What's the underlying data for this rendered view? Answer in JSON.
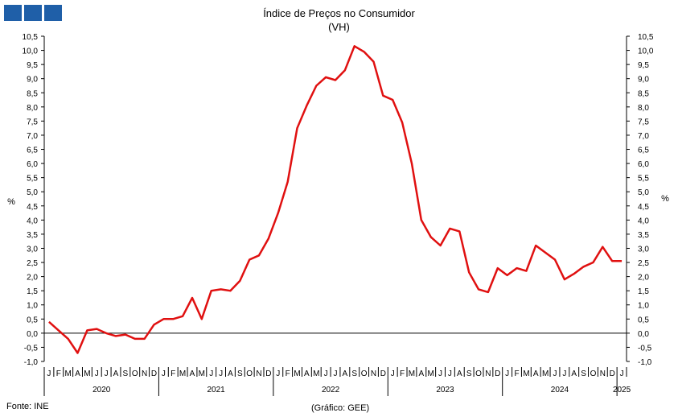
{
  "header": {
    "logo_blocks": 3,
    "logo_color": "#1f5fa8"
  },
  "footer": {
    "source": "Fonte: INE",
    "credit": "(Gráfico: GEE)"
  },
  "chart_data": {
    "type": "line",
    "title": "Índice de Preços no Consumidor",
    "subtitle": "(VH)",
    "ylabel_left": "%",
    "ylabel_right": "%",
    "ylim": [
      -1.0,
      10.5
    ],
    "yticks": [
      "-1,0",
      "-0,5",
      "0,0",
      "0,5",
      "1,0",
      "1,5",
      "2,0",
      "2,5",
      "3,0",
      "3,5",
      "4,0",
      "4,5",
      "5,0",
      "5,5",
      "6,0",
      "6,5",
      "7,0",
      "7,5",
      "8,0",
      "8,5",
      "9,0",
      "9,5",
      "10,0",
      "10,5"
    ],
    "month_labels": [
      "J",
      "F",
      "M",
      "A",
      "M",
      "J",
      "J",
      "A",
      "S",
      "O",
      "N",
      "D"
    ],
    "years": [
      "2020",
      "2021",
      "2022",
      "2023",
      "2024",
      "2025"
    ],
    "grid": false,
    "series": [
      {
        "color": "#e01010",
        "x": [
          "2020-01",
          "2020-02",
          "2020-03",
          "2020-04",
          "2020-05",
          "2020-06",
          "2020-07",
          "2020-08",
          "2020-09",
          "2020-10",
          "2020-11",
          "2020-12",
          "2021-01",
          "2021-02",
          "2021-03",
          "2021-04",
          "2021-05",
          "2021-06",
          "2021-07",
          "2021-08",
          "2021-09",
          "2021-10",
          "2021-11",
          "2021-12",
          "2022-01",
          "2022-02",
          "2022-03",
          "2022-04",
          "2022-05",
          "2022-06",
          "2022-07",
          "2022-08",
          "2022-09",
          "2022-10",
          "2022-11",
          "2022-12",
          "2023-01",
          "2023-02",
          "2023-03",
          "2023-04",
          "2023-05",
          "2023-06",
          "2023-07",
          "2023-08",
          "2023-09",
          "2023-10",
          "2023-11",
          "2023-12",
          "2024-01",
          "2024-02",
          "2024-03",
          "2024-04",
          "2024-05",
          "2024-06",
          "2024-07",
          "2024-08",
          "2024-09",
          "2024-10",
          "2024-11",
          "2024-12",
          "2025-01"
        ],
        "values": [
          0.4,
          0.1,
          -0.2,
          -0.7,
          0.1,
          0.15,
          0.0,
          -0.1,
          -0.05,
          -0.2,
          -0.2,
          0.3,
          0.5,
          0.5,
          0.6,
          1.25,
          0.5,
          1.5,
          1.55,
          1.5,
          1.85,
          2.6,
          2.75,
          3.35,
          4.25,
          5.35,
          7.25,
          8.05,
          8.75,
          9.05,
          8.95,
          9.3,
          10.15,
          9.95,
          9.6,
          8.4,
          8.25,
          7.45,
          6.0,
          4.0,
          3.4,
          3.1,
          3.7,
          3.6,
          2.15,
          1.55,
          1.45,
          2.3,
          2.05,
          2.3,
          2.2,
          3.1,
          2.85,
          2.6,
          1.9,
          2.1,
          2.35,
          2.5,
          3.05,
          2.55,
          2.55
        ]
      }
    ]
  }
}
